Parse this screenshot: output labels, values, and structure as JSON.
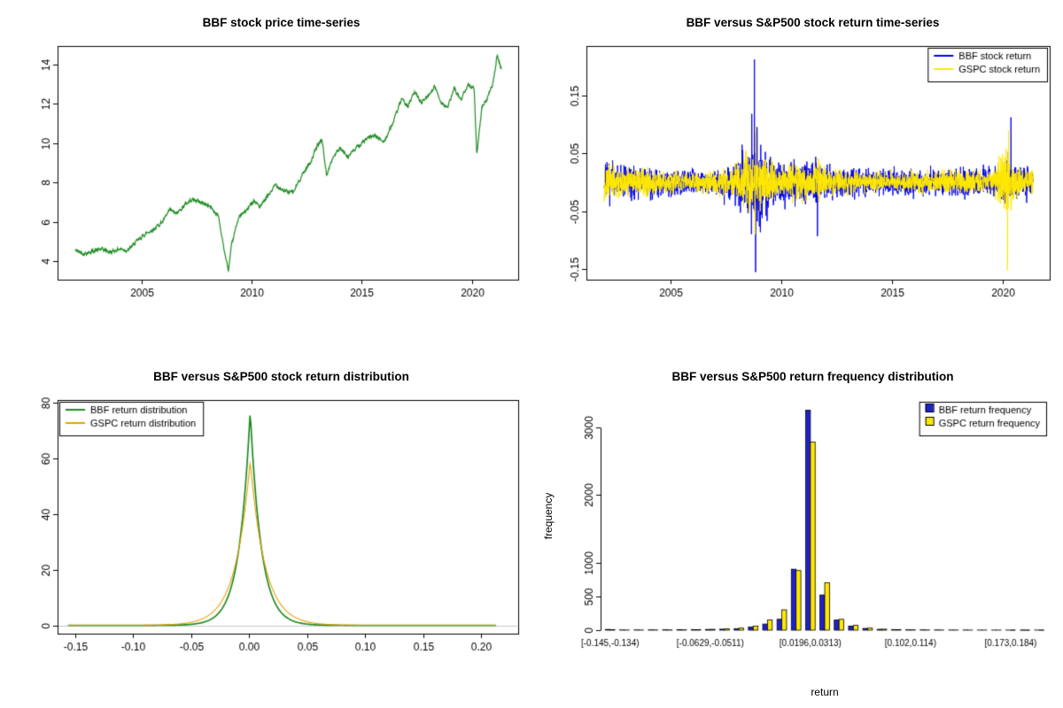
{
  "chart_data": [
    {
      "id": "bbf-price",
      "type": "line",
      "title": "BBF stock price time-series",
      "xlim": [
        2001.2,
        2022.1
      ],
      "ylim": [
        3.05,
        14.95
      ],
      "x_ticks": {
        "values": [
          2005,
          2010,
          2015,
          2020
        ],
        "labels": [
          "2005",
          "2010",
          "2015",
          "2020"
        ]
      },
      "y_ticks": {
        "values": [
          4,
          6,
          8,
          10,
          12,
          14
        ],
        "labels": [
          "4",
          "6",
          "8",
          "10",
          "12",
          "14"
        ]
      },
      "series": [
        {
          "name": "BBF stock price",
          "color": "#1E8B22",
          "seed": 42,
          "noise_amp": 0.09,
          "anchors": [
            [
              2002,
              4.55
            ],
            [
              2002.4,
              4.38
            ],
            [
              2002.8,
              4.5
            ],
            [
              2003.2,
              4.6
            ],
            [
              2003.6,
              4.45
            ],
            [
              2004,
              4.62
            ],
            [
              2004.4,
              4.55
            ],
            [
              2004.8,
              5.0
            ],
            [
              2005.2,
              5.4
            ],
            [
              2005.6,
              5.65
            ],
            [
              2006,
              6.05
            ],
            [
              2006.3,
              6.6
            ],
            [
              2006.6,
              6.4
            ],
            [
              2007,
              6.9
            ],
            [
              2007.3,
              7.15
            ],
            [
              2007.7,
              7.0
            ],
            [
              2008.1,
              6.8
            ],
            [
              2008.5,
              6.3
            ],
            [
              2008.75,
              4.6
            ],
            [
              2008.95,
              3.5
            ],
            [
              2009.1,
              4.8
            ],
            [
              2009.4,
              6.2
            ],
            [
              2009.8,
              6.6
            ],
            [
              2010.1,
              7.1
            ],
            [
              2010.4,
              6.75
            ],
            [
              2010.8,
              7.4
            ],
            [
              2011.1,
              7.9
            ],
            [
              2011.5,
              7.55
            ],
            [
              2011.9,
              7.5
            ],
            [
              2012.3,
              8.4
            ],
            [
              2012.7,
              9.1
            ],
            [
              2013,
              9.9
            ],
            [
              2013.2,
              10.2
            ],
            [
              2013.4,
              8.35
            ],
            [
              2013.7,
              9.3
            ],
            [
              2014,
              9.7
            ],
            [
              2014.4,
              9.35
            ],
            [
              2014.8,
              9.8
            ],
            [
              2015.2,
              10.2
            ],
            [
              2015.6,
              10.4
            ],
            [
              2016,
              10.05
            ],
            [
              2016.4,
              11.0
            ],
            [
              2016.8,
              12.2
            ],
            [
              2017.1,
              11.9
            ],
            [
              2017.4,
              12.6
            ],
            [
              2017.7,
              12.1
            ],
            [
              2018,
              12.4
            ],
            [
              2018.3,
              12.9
            ],
            [
              2018.6,
              12.1
            ],
            [
              2018.9,
              11.8
            ],
            [
              2019.2,
              12.8
            ],
            [
              2019.5,
              12.2
            ],
            [
              2019.8,
              13.0
            ],
            [
              2020.1,
              12.85
            ],
            [
              2020.22,
              9.4
            ],
            [
              2020.45,
              11.8
            ],
            [
              2020.7,
              12.3
            ],
            [
              2020.95,
              13.0
            ],
            [
              2021.15,
              14.5
            ],
            [
              2021.35,
              13.75
            ]
          ]
        }
      ]
    },
    {
      "id": "bbf-vs-gspc-returns",
      "type": "line",
      "title": "BBF versus S&P500 stock return time-series",
      "xlim": [
        2001.2,
        2022.1
      ],
      "ylim": [
        -0.168,
        0.235
      ],
      "x_ticks": {
        "values": [
          2005,
          2010,
          2015,
          2020
        ],
        "labels": [
          "2005",
          "2010",
          "2015",
          "2020"
        ]
      },
      "y_ticks": {
        "values": [
          -0.15,
          -0.05,
          0.05,
          0.15
        ],
        "labels": [
          "-0.15",
          "-0.05",
          "0.05",
          "0.15"
        ]
      },
      "legend_position": "top-right",
      "series": [
        {
          "name": "BBF stock return",
          "color": "#0000EE",
          "seed": 7,
          "vol_anchors": [
            [
              2002,
              0.013
            ],
            [
              2005,
              0.01
            ],
            [
              2006.5,
              0.0085
            ],
            [
              2007.8,
              0.012
            ],
            [
              2008.55,
              0.03
            ],
            [
              2009.1,
              0.026
            ],
            [
              2009.8,
              0.015
            ],
            [
              2011.6,
              0.016
            ],
            [
              2012.5,
              0.011
            ],
            [
              2014,
              0.009
            ],
            [
              2016,
              0.0095
            ],
            [
              2018,
              0.01
            ],
            [
              2019.5,
              0.009
            ],
            [
              2020.15,
              0.017
            ],
            [
              2020.6,
              0.012
            ],
            [
              2021.3,
              0.011
            ]
          ],
          "spikes": [
            [
              2008.78,
              0.212
            ],
            [
              2008.83,
              -0.155
            ],
            [
              2008.66,
              0.118
            ],
            [
              2008.9,
              0.095
            ],
            [
              2011.62,
              -0.093
            ],
            [
              2020.35,
              0.112
            ]
          ]
        },
        {
          "name": "GSPC stock return",
          "color": "#FFE800",
          "seed": 13,
          "vol_anchors": [
            [
              2002,
              0.011
            ],
            [
              2005,
              0.007
            ],
            [
              2006.5,
              0.006
            ],
            [
              2007.8,
              0.01
            ],
            [
              2008.55,
              0.024
            ],
            [
              2009.1,
              0.02
            ],
            [
              2009.8,
              0.011
            ],
            [
              2011.6,
              0.013
            ],
            [
              2012.5,
              0.008
            ],
            [
              2014,
              0.006
            ],
            [
              2016,
              0.007
            ],
            [
              2018,
              0.008
            ],
            [
              2019.5,
              0.007
            ],
            [
              2020.15,
              0.026
            ],
            [
              2020.6,
              0.01
            ],
            [
              2021.3,
              0.008
            ]
          ],
          "spikes": [
            [
              2020.2,
              -0.152
            ],
            [
              2020.24,
              0.09
            ],
            [
              2008.85,
              0.098
            ],
            [
              2008.8,
              -0.09
            ]
          ]
        }
      ]
    },
    {
      "id": "bbf-vs-gspc-density",
      "type": "density",
      "title": "BBF versus S&P500 stock return distribution",
      "xlim": [
        -0.165,
        0.232
      ],
      "ylim": [
        -3,
        81
      ],
      "x_ticks": {
        "values": [
          -0.15,
          -0.1,
          -0.05,
          0,
          0.05,
          0.1,
          0.15,
          0.2
        ],
        "labels": [
          "-0.15",
          "-0.10",
          "-0.05",
          "0.00",
          "0.05",
          "0.10",
          "0.15",
          "0.20"
        ]
      },
      "y_ticks": {
        "values": [
          0,
          20,
          40,
          60,
          80
        ],
        "labels": [
          "0",
          "20",
          "40",
          "60",
          "80"
        ]
      },
      "zero_line_color": "#C8C8C8",
      "legend_position": "top-left",
      "curve_range": [
        -0.156,
        0.213
      ],
      "series": [
        {
          "name": "BBF return distribution",
          "color": "#1E8B22",
          "peak": 77,
          "center": 0.001,
          "scale": 0.0095,
          "line_width": 1.7
        },
        {
          "name": "GSPC return distribution",
          "color": "#E8A000",
          "peak": 59,
          "center": 0.001,
          "scale": 0.0128,
          "line_width": 1.1
        }
      ]
    },
    {
      "id": "bbf-vs-gspc-frequency",
      "type": "bar",
      "title": "BBF versus S&P500 return frequency distribution",
      "xlabel": "return",
      "ylabel": "frequency",
      "ylim": [
        0,
        3400
      ],
      "y_ticks": {
        "values": [
          0,
          500,
          1000,
          2000,
          3000
        ],
        "labels": [
          "0",
          "500",
          "1000",
          "2000",
          "3000"
        ]
      },
      "n_bins": 31,
      "bin_labels": [
        "[-0.145,-0.134)",
        "[-0.0629,-0.0511)",
        "[0.0196,0.0313)",
        "[0.102,0.114)",
        "[0.173,0.184)"
      ],
      "bin_label_positions": [
        0,
        7,
        14,
        21,
        28
      ],
      "legend_position": "top-right",
      "series": [
        {
          "name": "BBF return frequency",
          "color": "#2020CC",
          "values": [
            10,
            3,
            3,
            4,
            5,
            6,
            8,
            10,
            14,
            22,
            45,
            90,
            160,
            900,
            3250,
            520,
            150,
            60,
            25,
            12,
            8,
            5,
            4,
            3,
            2,
            2,
            1,
            1,
            1,
            0,
            1
          ]
        },
        {
          "name": "GSPC return frequency",
          "color": "#FFE800",
          "values": [
            6,
            2,
            2,
            3,
            4,
            5,
            7,
            12,
            18,
            30,
            60,
            150,
            300,
            880,
            2780,
            700,
            160,
            70,
            30,
            14,
            8,
            5,
            3,
            2,
            2,
            1,
            1,
            1,
            0,
            0,
            0
          ]
        }
      ]
    }
  ]
}
